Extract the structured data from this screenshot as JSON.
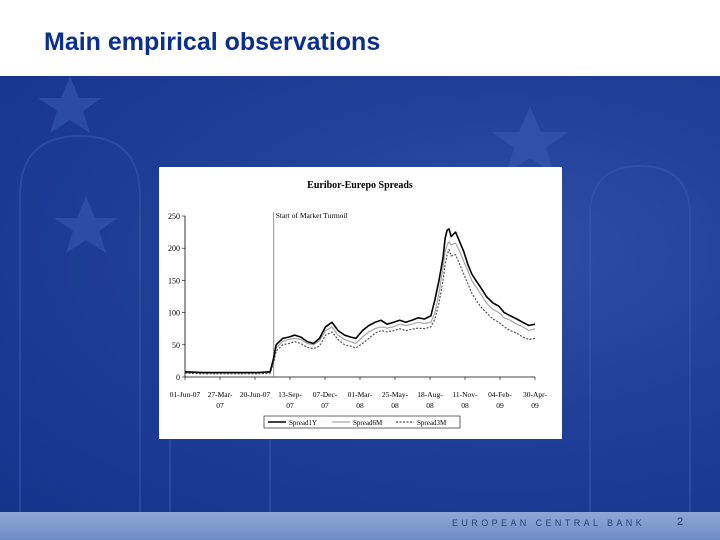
{
  "slide": {
    "title": "Main empirical observations",
    "footer": "EUROPEAN CENTRAL BANK",
    "page_number": "2"
  },
  "colors": {
    "title": "#0a2f8c",
    "background": "#203f98",
    "footer_bar": "#7f99cf"
  },
  "chart_data": {
    "type": "line",
    "title": "Euribor-Eurepo Spreads",
    "xlabel": "",
    "ylabel": "",
    "ylim": [
      0,
      250
    ],
    "yticks": [
      0,
      50,
      100,
      150,
      200,
      250
    ],
    "x_tick_labels": [
      [
        "01-Jun-07"
      ],
      [
        "27-Mar-",
        "07"
      ],
      [
        "20-Jun-07"
      ],
      [
        "13-Sep-",
        "07"
      ],
      [
        "07-Dec-",
        "07"
      ],
      [
        "01-Mar-",
        "08"
      ],
      [
        "25-May-",
        "08"
      ],
      [
        "18-Aug-",
        "08"
      ],
      [
        "11-Nov-",
        "08"
      ],
      [
        "04-Feb-",
        "09"
      ],
      [
        "30-Apr-",
        "09"
      ]
    ],
    "x": [
      "2007-01-02",
      "2007-02-15",
      "2007-04-01",
      "2007-05-15",
      "2007-06-30",
      "2007-07-31",
      "2007-08-09",
      "2007-08-15",
      "2007-08-31",
      "2007-09-15",
      "2007-09-30",
      "2007-10-15",
      "2007-10-31",
      "2007-11-15",
      "2007-11-30",
      "2007-12-15",
      "2007-12-31",
      "2008-01-15",
      "2008-01-31",
      "2008-02-15",
      "2008-02-28",
      "2008-03-15",
      "2008-03-31",
      "2008-04-15",
      "2008-04-30",
      "2008-05-15",
      "2008-05-31",
      "2008-06-15",
      "2008-06-30",
      "2008-07-15",
      "2008-07-31",
      "2008-08-15",
      "2008-08-31",
      "2008-09-10",
      "2008-09-20",
      "2008-09-30",
      "2008-10-05",
      "2008-10-10",
      "2008-10-15",
      "2008-10-20",
      "2008-10-31",
      "2008-11-10",
      "2008-11-20",
      "2008-11-30",
      "2008-12-10",
      "2008-12-20",
      "2008-12-31",
      "2009-01-15",
      "2009-01-31",
      "2009-02-15",
      "2009-02-28",
      "2009-03-15",
      "2009-03-31",
      "2009-04-15",
      "2009-04-30",
      "2009-05-15"
    ],
    "series": [
      {
        "name": "Spread1Y",
        "color": "#000000",
        "dash": "solid",
        "values": [
          8,
          7,
          7,
          7,
          7,
          8,
          30,
          50,
          60,
          62,
          65,
          62,
          55,
          52,
          60,
          78,
          85,
          72,
          65,
          62,
          60,
          72,
          80,
          85,
          88,
          82,
          85,
          88,
          85,
          88,
          92,
          90,
          95,
          120,
          150,
          185,
          215,
          228,
          230,
          218,
          225,
          210,
          195,
          175,
          160,
          150,
          140,
          125,
          115,
          110,
          100,
          95,
          90,
          85,
          80,
          82
        ]
      },
      {
        "name": "Spread6M",
        "color": "#a8a8a8",
        "dash": "solid",
        "values": [
          7,
          6,
          6,
          6,
          6,
          7,
          25,
          45,
          55,
          58,
          60,
          58,
          52,
          50,
          56,
          72,
          78,
          65,
          58,
          55,
          52,
          62,
          70,
          75,
          78,
          76,
          78,
          82,
          80,
          82,
          85,
          83,
          85,
          100,
          130,
          170,
          195,
          205,
          210,
          205,
          208,
          195,
          180,
          165,
          150,
          140,
          130,
          115,
          105,
          100,
          92,
          88,
          82,
          78,
          72,
          75
        ]
      },
      {
        "name": "Spread3M",
        "color": "#555555",
        "dash": "dotted",
        "values": [
          6,
          5,
          5,
          5,
          5,
          6,
          22,
          40,
          50,
          52,
          55,
          52,
          46,
          44,
          48,
          65,
          70,
          58,
          50,
          48,
          45,
          52,
          60,
          68,
          72,
          70,
          72,
          75,
          72,
          74,
          76,
          75,
          78,
          90,
          115,
          150,
          175,
          190,
          198,
          188,
          190,
          175,
          160,
          145,
          130,
          120,
          110,
          100,
          90,
          85,
          78,
          72,
          68,
          62,
          58,
          60
        ]
      }
    ],
    "annotations": [
      {
        "text": "Start of Market Turmoil",
        "x": "2007-08-09"
      }
    ],
    "legend": "bottom",
    "grid": false
  }
}
